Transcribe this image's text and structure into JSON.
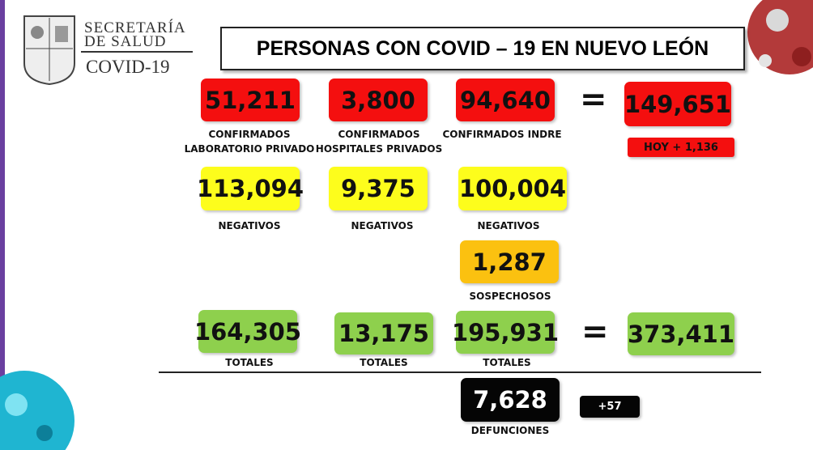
{
  "header": {
    "agency": [
      "SECRETARÍA",
      "DE SALUD"
    ],
    "program": "COVID-19"
  },
  "title": "PERSONAS CON COVID – 19 EN NUEVO LEÓN",
  "confirmados": {
    "items": [
      {
        "value": "51,211",
        "label": [
          "CONFIRMADOS",
          "LABORATORIO PRIVADO"
        ]
      },
      {
        "value": "3,800",
        "label": [
          "CONFIRMADOS",
          "HOSPITALES PRIVADOS"
        ]
      },
      {
        "value": "94,640",
        "label": [
          "CONFIRMADOS INDRE"
        ]
      }
    ],
    "equals": "=",
    "total": "149,651",
    "today": "HOY + 1,136"
  },
  "negativos": {
    "items": [
      {
        "value": "113,094",
        "label": "NEGATIVOS"
      },
      {
        "value": "9,375",
        "label": "NEGATIVOS"
      },
      {
        "value": "100,004",
        "label": "NEGATIVOS"
      }
    ]
  },
  "sospechosos": {
    "value": "1,287",
    "label": "SOSPECHOSOS"
  },
  "totales": {
    "items": [
      {
        "value": "164,305",
        "label": "TOTALES"
      },
      {
        "value": "13,175",
        "label": "TOTALES"
      },
      {
        "value": "195,931",
        "label": "TOTALES"
      }
    ],
    "equals": "=",
    "total": "373,411"
  },
  "defunciones": {
    "value": "7,628",
    "label": "DEFUNCIONES",
    "change": "+57"
  }
}
